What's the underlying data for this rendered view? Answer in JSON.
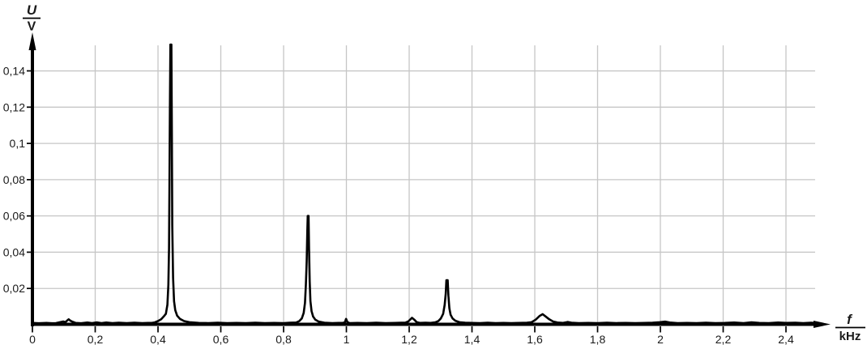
{
  "colors": {
    "background": "#ffffff",
    "grid": "#c6c6c6",
    "axis": "#000000",
    "curve": "#000000",
    "tick_text": "#1a1a1a"
  },
  "chart_data": {
    "type": "line",
    "description": "FFT amplitude spectrum: voltage amplitude U (V) versus frequency f (kHz)",
    "ylabel": {
      "numerator": "U",
      "denominator": "V"
    },
    "xlabel": {
      "numerator": "f",
      "denominator": "kHz"
    },
    "decimal_separator": ",",
    "grid": true,
    "legend": "none",
    "xlim": [
      0,
      2.55
    ],
    "ylim": [
      0,
      0.1545
    ],
    "x_ticks": {
      "values": [
        0,
        0.2,
        0.4,
        0.6,
        0.8,
        1.0,
        1.2,
        1.4,
        1.6,
        1.8,
        2.0,
        2.2,
        2.4
      ],
      "labels": [
        "0",
        "0,2",
        "0,4",
        "0,6",
        "0,8",
        "1",
        "1,2",
        "1,4",
        "1,6",
        "1,8",
        "2",
        "2,2",
        "2,4"
      ]
    },
    "y_ticks": {
      "values": [
        0.02,
        0.04,
        0.06,
        0.08,
        0.1,
        0.12,
        0.14
      ],
      "labels": [
        "0,02",
        "0,04",
        "0,06",
        "0,08",
        "0,1",
        "0,12",
        "0,14"
      ]
    },
    "peaks": [
      {
        "f_kHz": 0.12,
        "U_V": 0.003
      },
      {
        "f_kHz": 0.44,
        "U_V": 0.154
      },
      {
        "f_kHz": 0.88,
        "U_V": 0.06
      },
      {
        "f_kHz": 1.0,
        "U_V": 0.003
      },
      {
        "f_kHz": 1.21,
        "U_V": 0.004
      },
      {
        "f_kHz": 1.32,
        "U_V": 0.0245
      },
      {
        "f_kHz": 1.63,
        "U_V": 0.006
      }
    ],
    "series": [
      {
        "name": "U(f)",
        "color": "#000000",
        "points": [
          [
            0.0,
            0.001
          ],
          [
            0.02,
            0.0008
          ],
          [
            0.045,
            0.001
          ],
          [
            0.062,
            0.0008
          ],
          [
            0.075,
            0.0009
          ],
          [
            0.088,
            0.0014
          ],
          [
            0.098,
            0.0018
          ],
          [
            0.105,
            0.0014
          ],
          [
            0.11,
            0.0022
          ],
          [
            0.1155,
            0.003
          ],
          [
            0.121,
            0.0022
          ],
          [
            0.128,
            0.0016
          ],
          [
            0.138,
            0.001
          ],
          [
            0.155,
            0.0008
          ],
          [
            0.175,
            0.0012
          ],
          [
            0.19,
            0.0009
          ],
          [
            0.205,
            0.0013
          ],
          [
            0.22,
            0.0009
          ],
          [
            0.235,
            0.0012
          ],
          [
            0.255,
            0.0009
          ],
          [
            0.275,
            0.0011
          ],
          [
            0.3,
            0.0009
          ],
          [
            0.325,
            0.0011
          ],
          [
            0.35,
            0.0009
          ],
          [
            0.368,
            0.001
          ],
          [
            0.38,
            0.001
          ],
          [
            0.39,
            0.0013
          ],
          [
            0.4,
            0.002
          ],
          [
            0.41,
            0.003
          ],
          [
            0.418,
            0.0045
          ],
          [
            0.425,
            0.006
          ],
          [
            0.43,
            0.011
          ],
          [
            0.433,
            0.022
          ],
          [
            0.435,
            0.042
          ],
          [
            0.4365,
            0.075
          ],
          [
            0.438,
            0.12
          ],
          [
            0.4395,
            0.1545
          ],
          [
            0.4425,
            0.1545
          ],
          [
            0.444,
            0.105
          ],
          [
            0.4455,
            0.055
          ],
          [
            0.448,
            0.026
          ],
          [
            0.451,
            0.013
          ],
          [
            0.455,
            0.008
          ],
          [
            0.461,
            0.005
          ],
          [
            0.47,
            0.0032
          ],
          [
            0.483,
            0.002
          ],
          [
            0.5,
            0.0014
          ],
          [
            0.53,
            0.001
          ],
          [
            0.56,
            0.0009
          ],
          [
            0.59,
            0.0011
          ],
          [
            0.62,
            0.0009
          ],
          [
            0.65,
            0.001
          ],
          [
            0.68,
            0.0009
          ],
          [
            0.71,
            0.0011
          ],
          [
            0.74,
            0.0009
          ],
          [
            0.77,
            0.001
          ],
          [
            0.8,
            0.0009
          ],
          [
            0.82,
            0.0011
          ],
          [
            0.84,
            0.0012
          ],
          [
            0.85,
            0.002
          ],
          [
            0.858,
            0.0035
          ],
          [
            0.864,
            0.0065
          ],
          [
            0.868,
            0.012
          ],
          [
            0.871,
            0.022
          ],
          [
            0.8735,
            0.035
          ],
          [
            0.8755,
            0.052
          ],
          [
            0.877,
            0.06
          ],
          [
            0.8795,
            0.06
          ],
          [
            0.881,
            0.042
          ],
          [
            0.883,
            0.024
          ],
          [
            0.8855,
            0.013
          ],
          [
            0.889,
            0.0075
          ],
          [
            0.894,
            0.0045
          ],
          [
            0.901,
            0.0028
          ],
          [
            0.912,
            0.0017
          ],
          [
            0.93,
            0.0011
          ],
          [
            0.955,
            0.0009
          ],
          [
            0.975,
            0.001
          ],
          [
            0.988,
            0.001
          ],
          [
            0.995,
            0.0013
          ],
          [
            0.999,
            0.0032
          ],
          [
            1.003,
            0.0015
          ],
          [
            1.01,
            0.0009
          ],
          [
            1.035,
            0.001
          ],
          [
            1.065,
            0.0009
          ],
          [
            1.095,
            0.0011
          ],
          [
            1.125,
            0.0009
          ],
          [
            1.155,
            0.001
          ],
          [
            1.175,
            0.0011
          ],
          [
            1.188,
            0.0011
          ],
          [
            1.197,
            0.0018
          ],
          [
            1.204,
            0.003
          ],
          [
            1.209,
            0.0038
          ],
          [
            1.216,
            0.0028
          ],
          [
            1.224,
            0.0014
          ],
          [
            1.234,
            0.001
          ],
          [
            1.252,
            0.0011
          ],
          [
            1.268,
            0.001
          ],
          [
            1.283,
            0.0013
          ],
          [
            1.293,
            0.002
          ],
          [
            1.301,
            0.0035
          ],
          [
            1.308,
            0.006
          ],
          [
            1.313,
            0.011
          ],
          [
            1.3165,
            0.017
          ],
          [
            1.3185,
            0.0245
          ],
          [
            1.3225,
            0.0245
          ],
          [
            1.325,
            0.016
          ],
          [
            1.328,
            0.009
          ],
          [
            1.332,
            0.0055
          ],
          [
            1.338,
            0.0035
          ],
          [
            1.347,
            0.0022
          ],
          [
            1.36,
            0.0014
          ],
          [
            1.378,
            0.0011
          ],
          [
            1.4,
            0.001
          ],
          [
            1.425,
            0.0009
          ],
          [
            1.45,
            0.0011
          ],
          [
            1.475,
            0.0009
          ],
          [
            1.5,
            0.001
          ],
          [
            1.525,
            0.0009
          ],
          [
            1.55,
            0.001
          ],
          [
            1.575,
            0.0011
          ],
          [
            1.59,
            0.0014
          ],
          [
            1.603,
            0.0028
          ],
          [
            1.615,
            0.0048
          ],
          [
            1.625,
            0.0058
          ],
          [
            1.634,
            0.0046
          ],
          [
            1.646,
            0.003
          ],
          [
            1.658,
            0.0018
          ],
          [
            1.672,
            0.0012
          ],
          [
            1.69,
            0.001
          ],
          [
            1.705,
            0.0015
          ],
          [
            1.717,
            0.0011
          ],
          [
            1.74,
            0.0009
          ],
          [
            1.77,
            0.001
          ],
          [
            1.8,
            0.0009
          ],
          [
            1.83,
            0.0011
          ],
          [
            1.86,
            0.0009
          ],
          [
            1.89,
            0.001
          ],
          [
            1.92,
            0.0009
          ],
          [
            1.95,
            0.001
          ],
          [
            1.975,
            0.0011
          ],
          [
            1.998,
            0.0014
          ],
          [
            2.015,
            0.0017
          ],
          [
            2.03,
            0.0012
          ],
          [
            2.055,
            0.0009
          ],
          [
            2.085,
            0.001
          ],
          [
            2.115,
            0.0009
          ],
          [
            2.145,
            0.0011
          ],
          [
            2.175,
            0.0009
          ],
          [
            2.205,
            0.001
          ],
          [
            2.235,
            0.0012
          ],
          [
            2.265,
            0.0009
          ],
          [
            2.29,
            0.0013
          ],
          [
            2.315,
            0.001
          ],
          [
            2.345,
            0.0009
          ],
          [
            2.375,
            0.0012
          ],
          [
            2.4,
            0.001
          ],
          [
            2.43,
            0.0011
          ],
          [
            2.455,
            0.0009
          ],
          [
            2.48,
            0.0011
          ],
          [
            2.493,
            0.001
          ]
        ]
      }
    ]
  }
}
